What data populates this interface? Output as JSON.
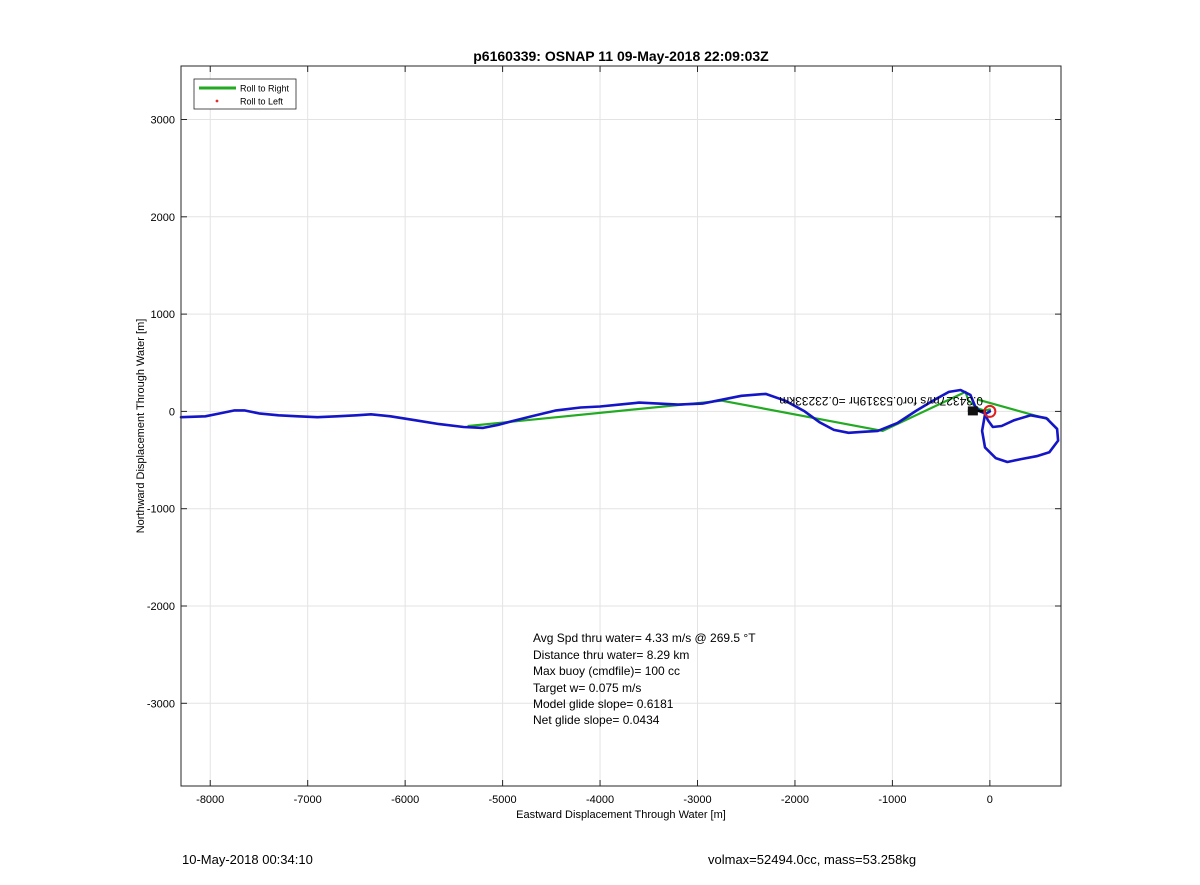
{
  "chart_data": {
    "type": "line",
    "title": "p6160339: OSNAP 11 09-May-2018 22:09:03Z",
    "xlabel": "Eastward Displacement Through Water [m]",
    "ylabel": "Northward Displacement Through Water [m]",
    "xlim": [
      -8300,
      730
    ],
    "ylim": [
      -3850,
      3550
    ],
    "xticks": [
      -8000,
      -7000,
      -6000,
      -5000,
      -4000,
      -3000,
      -2000,
      -1000,
      0
    ],
    "yticks": [
      -3000,
      -2000,
      -1000,
      0,
      1000,
      2000,
      3000
    ],
    "grid": true,
    "legend": {
      "placement": "top-left",
      "entries": [
        {
          "label": "Roll to Right",
          "color": "#22aa22",
          "marker": "line"
        },
        {
          "label": "Roll to Left",
          "color": "#e03030",
          "marker": "dot"
        }
      ]
    },
    "series": [
      {
        "color": "#1515c8",
        "points": [
          [
            -8300,
            -60
          ],
          [
            -8050,
            -50
          ],
          [
            -7900,
            -20
          ],
          [
            -7750,
            10
          ],
          [
            -7650,
            10
          ],
          [
            -7500,
            -20
          ],
          [
            -7300,
            -40
          ],
          [
            -7100,
            -50
          ],
          [
            -6900,
            -60
          ],
          [
            -6700,
            -50
          ],
          [
            -6500,
            -40
          ],
          [
            -6350,
            -30
          ],
          [
            -6150,
            -50
          ],
          [
            -5900,
            -90
          ],
          [
            -5650,
            -130
          ],
          [
            -5400,
            -160
          ],
          [
            -5200,
            -170
          ],
          [
            -5050,
            -140
          ],
          [
            -4900,
            -100
          ],
          [
            -4700,
            -50
          ],
          [
            -4450,
            10
          ],
          [
            -4200,
            40
          ],
          [
            -4000,
            50
          ],
          [
            -3800,
            70
          ],
          [
            -3600,
            90
          ],
          [
            -3400,
            80
          ],
          [
            -3200,
            70
          ],
          [
            -2950,
            80
          ],
          [
            -2800,
            110
          ],
          [
            -2550,
            160
          ],
          [
            -2300,
            180
          ],
          [
            -2100,
            110
          ],
          [
            -1900,
            0
          ],
          [
            -1750,
            -110
          ],
          [
            -1600,
            -190
          ],
          [
            -1450,
            -220
          ],
          [
            -1300,
            -210
          ],
          [
            -1150,
            -200
          ],
          [
            -950,
            -120
          ],
          [
            -750,
            10
          ],
          [
            -550,
            130
          ],
          [
            -420,
            200
          ],
          [
            -300,
            220
          ],
          [
            -200,
            170
          ],
          [
            -150,
            50
          ],
          [
            -100,
            0
          ],
          [
            -50,
            -20
          ],
          [
            -20,
            -90
          ],
          [
            30,
            -160
          ],
          [
            120,
            -150
          ],
          [
            250,
            -90
          ],
          [
            420,
            -40
          ],
          [
            580,
            -70
          ],
          [
            690,
            -180
          ],
          [
            700,
            -300
          ],
          [
            610,
            -420
          ],
          [
            480,
            -460
          ],
          [
            320,
            -490
          ],
          [
            180,
            -520
          ],
          [
            60,
            -480
          ],
          [
            -50,
            -370
          ],
          [
            -80,
            -200
          ],
          [
            -50,
            -30
          ],
          [
            0,
            0
          ]
        ]
      },
      {
        "color": "#22aa22",
        "points": [
          [
            -5350,
            -150
          ],
          [
            -2750,
            110
          ],
          [
            -1100,
            -200
          ],
          [
            -250,
            200
          ],
          [
            -220,
            110
          ],
          [
            -120,
            30
          ],
          [
            -60,
            10
          ],
          [
            0,
            20
          ]
        ]
      },
      {
        "color": "#22aa22",
        "points": [
          [
            -120,
            120
          ],
          [
            600,
            -80
          ]
        ]
      }
    ],
    "track_label": "0.34327m/s for0.53319hr =0.23233km",
    "stats": [
      "Avg Spd thru water=  4.33 m/s @ 269.5 °T",
      "Distance thru water=  8.29 km",
      "Max buoy (cmdfile)= 100 cc",
      "Target w= 0.075 m/s",
      "Model glide slope= 0.6181",
      "Net glide slope= 0.0434"
    ]
  },
  "footer": {
    "timestamp": "10-May-2018 00:34:10",
    "vehicle": "volmax=52494.0cc, mass=53.258kg"
  }
}
